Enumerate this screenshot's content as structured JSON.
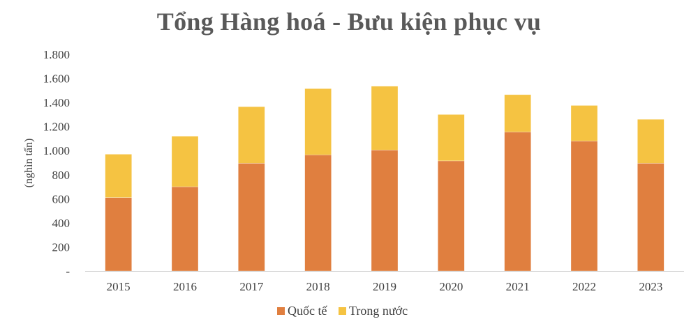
{
  "chart_data": {
    "type": "bar",
    "stacked": true,
    "title": "Tổng Hàng hoá - Bưu kiện phục vụ",
    "ylabel": "(nghìn tấn)",
    "xlabel": "",
    "categories": [
      "2015",
      "2016",
      "2017",
      "2018",
      "2019",
      "2020",
      "2021",
      "2022",
      "2023"
    ],
    "series": [
      {
        "name": "Quốc tế",
        "color": "#E07F3F",
        "values": [
          610,
          700,
          895,
          965,
          1005,
          915,
          1155,
          1080,
          895
        ]
      },
      {
        "name": "Trong nước",
        "color": "#F5C342",
        "values": [
          360,
          420,
          470,
          550,
          530,
          385,
          310,
          295,
          365
        ]
      }
    ],
    "ylim": [
      0,
      1800
    ],
    "yticks": [
      0,
      200,
      400,
      600,
      800,
      1000,
      1200,
      1400,
      1600,
      1800
    ],
    "ytick_labels": [
      "-",
      "200",
      "400",
      "600",
      "800",
      "1.000",
      "1.200",
      "1.400",
      "1.600",
      "1.800"
    ],
    "grid": false,
    "legend_position": "bottom"
  }
}
